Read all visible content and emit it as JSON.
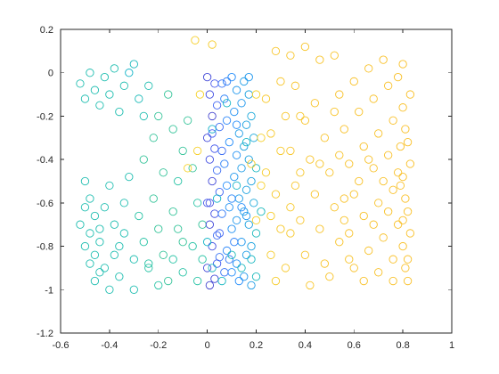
{
  "chart_data": {
    "type": "scatter",
    "title": "",
    "xlabel": "",
    "ylabel": "",
    "xlim": [
      -0.6,
      1
    ],
    "ylim": [
      -1.2,
      0.2
    ],
    "xticks": [
      -0.6,
      -0.4,
      -0.2,
      0,
      0.2,
      0.4,
      0.6,
      0.8,
      1
    ],
    "xtick_labels": [
      "-0.6",
      "-0.4",
      "-0.2",
      "0",
      "0.2",
      "0.4",
      "0.6",
      "0.8",
      "1"
    ],
    "yticks": [
      0.2,
      0,
      -0.2,
      -0.4,
      -0.6,
      -0.8,
      -1,
      -1.2
    ],
    "ytick_labels": [
      "0.2",
      "0",
      "-0.2",
      "-0.4",
      "-0.6",
      "-0.8",
      "-1",
      "-1.2"
    ],
    "grid": false,
    "legend": false,
    "box": true,
    "marker": "open-circle",
    "colormap": "parula",
    "points": [
      [
        -0.52,
        -0.05,
        0.55
      ],
      [
        -0.5,
        -0.12,
        0.55
      ],
      [
        -0.48,
        0.0,
        0.55
      ],
      [
        -0.46,
        -0.08,
        0.55
      ],
      [
        -0.44,
        -0.15,
        0.55
      ],
      [
        -0.42,
        -0.02,
        0.55
      ],
      [
        -0.4,
        -0.1,
        0.55
      ],
      [
        -0.38,
        0.02,
        0.55
      ],
      [
        -0.36,
        -0.18,
        0.55
      ],
      [
        -0.34,
        -0.06,
        0.55
      ],
      [
        -0.3,
        0.04,
        0.5
      ],
      [
        -0.28,
        -0.12,
        0.52
      ],
      [
        -0.26,
        -0.2,
        0.55
      ],
      [
        -0.32,
        0.0,
        0.45
      ],
      [
        -0.24,
        -0.06,
        0.55
      ],
      [
        -0.5,
        -0.5,
        0.55
      ],
      [
        -0.48,
        -0.58,
        0.55
      ],
      [
        -0.46,
        -0.66,
        0.55
      ],
      [
        -0.44,
        -0.72,
        0.55
      ],
      [
        -0.42,
        -0.62,
        0.55
      ],
      [
        -0.4,
        -0.52,
        0.55
      ],
      [
        -0.38,
        -0.7,
        0.55
      ],
      [
        -0.36,
        -0.8,
        0.55
      ],
      [
        -0.34,
        -0.6,
        0.55
      ],
      [
        -0.32,
        -0.48,
        0.55
      ],
      [
        -0.5,
        -0.8,
        0.55
      ],
      [
        -0.48,
        -0.88,
        0.55
      ],
      [
        -0.46,
        -0.96,
        0.55
      ],
      [
        -0.44,
        -0.78,
        0.55
      ],
      [
        -0.42,
        -0.9,
        0.55
      ],
      [
        -0.4,
        -1.0,
        0.55
      ],
      [
        -0.38,
        -0.84,
        0.55
      ],
      [
        -0.36,
        -0.94,
        0.55
      ],
      [
        -0.34,
        -0.74,
        0.55
      ],
      [
        -0.3,
        -0.86,
        0.55
      ],
      [
        -0.52,
        -0.7,
        0.55
      ],
      [
        -0.5,
        -0.62,
        0.55
      ],
      [
        -0.48,
        -0.74,
        0.55
      ],
      [
        -0.46,
        -0.84,
        0.55
      ],
      [
        -0.44,
        -0.92,
        0.55
      ],
      [
        -0.28,
        -0.66,
        0.6
      ],
      [
        -0.26,
        -0.78,
        0.6
      ],
      [
        -0.24,
        -0.9,
        0.6
      ],
      [
        -0.22,
        -0.58,
        0.62
      ],
      [
        -0.2,
        -0.72,
        0.62
      ],
      [
        -0.18,
        -0.84,
        0.62
      ],
      [
        -0.16,
        -0.96,
        0.62
      ],
      [
        -0.14,
        -0.64,
        0.62
      ],
      [
        -0.12,
        -0.5,
        0.6
      ],
      [
        -0.1,
        -0.78,
        0.62
      ],
      [
        -0.26,
        -0.4,
        0.62
      ],
      [
        -0.22,
        -0.3,
        0.62
      ],
      [
        -0.18,
        -0.46,
        0.62
      ],
      [
        -0.14,
        -0.26,
        0.62
      ],
      [
        -0.1,
        -0.36,
        0.62
      ],
      [
        -0.2,
        -0.2,
        0.62
      ],
      [
        -0.16,
        -0.1,
        0.62
      ],
      [
        -0.08,
        -0.22,
        0.62
      ],
      [
        -0.06,
        -0.44,
        0.62
      ],
      [
        -0.04,
        -0.6,
        0.6
      ],
      [
        -0.24,
        -0.88,
        0.6
      ],
      [
        -0.2,
        -0.98,
        0.6
      ],
      [
        -0.14,
        -0.86,
        0.6
      ],
      [
        -0.1,
        -0.92,
        0.6
      ],
      [
        -0.06,
        -0.8,
        0.6
      ],
      [
        -0.04,
        -0.96,
        0.6
      ],
      [
        -0.02,
        -0.7,
        0.62
      ],
      [
        -0.02,
        -0.86,
        0.6
      ],
      [
        -0.12,
        -0.72,
        0.62
      ],
      [
        -0.3,
        -1.0,
        0.55
      ],
      [
        -0.05,
        0.15,
        0.9
      ],
      [
        0.02,
        0.13,
        0.92
      ],
      [
        -0.03,
        -0.1,
        0.88
      ],
      [
        -0.08,
        -0.44,
        0.88
      ],
      [
        -0.04,
        -0.36,
        0.9
      ],
      [
        0.0,
        -0.02,
        0.1
      ],
      [
        0.01,
        -0.1,
        0.12
      ],
      [
        0.02,
        -0.2,
        0.08
      ],
      [
        0.0,
        -0.3,
        0.1
      ],
      [
        0.01,
        -0.4,
        0.12
      ],
      [
        0.02,
        -0.5,
        0.1
      ],
      [
        0.0,
        -0.6,
        0.14
      ],
      [
        0.01,
        -0.7,
        0.1
      ],
      [
        0.02,
        -0.8,
        0.12
      ],
      [
        0.0,
        -0.9,
        0.1
      ],
      [
        0.01,
        -0.98,
        0.08
      ],
      [
        0.03,
        -0.05,
        0.14
      ],
      [
        0.03,
        -0.35,
        0.14
      ],
      [
        0.03,
        -0.65,
        0.12
      ],
      [
        0.03,
        -0.95,
        0.1
      ],
      [
        0.04,
        -0.15,
        0.18
      ],
      [
        0.05,
        -0.25,
        0.2
      ],
      [
        0.04,
        -0.45,
        0.2
      ],
      [
        0.05,
        -0.55,
        0.18
      ],
      [
        0.04,
        -0.75,
        0.2
      ],
      [
        0.05,
        -0.85,
        0.22
      ],
      [
        0.06,
        -0.05,
        0.22
      ],
      [
        0.06,
        -0.65,
        0.24
      ],
      [
        0.07,
        -0.12,
        0.26
      ],
      [
        0.07,
        -0.42,
        0.26
      ],
      [
        0.08,
        -0.22,
        0.28
      ],
      [
        0.08,
        -0.52,
        0.3
      ],
      [
        0.08,
        -0.82,
        0.28
      ],
      [
        0.09,
        -0.32,
        0.3
      ],
      [
        0.09,
        -0.62,
        0.32
      ],
      [
        0.1,
        -0.02,
        0.3
      ],
      [
        0.1,
        -0.72,
        0.32
      ],
      [
        0.1,
        -0.92,
        0.3
      ],
      [
        0.11,
        -0.18,
        0.32
      ],
      [
        0.11,
        -0.48,
        0.34
      ],
      [
        0.12,
        -0.08,
        0.34
      ],
      [
        0.12,
        -0.38,
        0.32
      ],
      [
        0.12,
        -0.68,
        0.34
      ],
      [
        0.12,
        -0.88,
        0.32
      ],
      [
        0.13,
        -0.28,
        0.36
      ],
      [
        0.13,
        -0.58,
        0.36
      ],
      [
        0.14,
        -0.14,
        0.34
      ],
      [
        0.14,
        -0.44,
        0.36
      ],
      [
        0.14,
        -0.78,
        0.34
      ],
      [
        0.15,
        -0.04,
        0.36
      ],
      [
        0.15,
        -0.34,
        0.38
      ],
      [
        0.15,
        -0.64,
        0.36
      ],
      [
        0.15,
        -0.94,
        0.34
      ],
      [
        0.16,
        -0.24,
        0.38
      ],
      [
        0.16,
        -0.54,
        0.38
      ],
      [
        0.16,
        -0.84,
        0.36
      ],
      [
        0.17,
        -0.1,
        0.38
      ],
      [
        0.17,
        -0.4,
        0.38
      ],
      [
        0.17,
        -0.7,
        0.38
      ],
      [
        0.18,
        -0.2,
        0.4
      ],
      [
        0.18,
        -0.5,
        0.38
      ],
      [
        0.18,
        -0.8,
        0.38
      ],
      [
        0.18,
        -0.98,
        0.36
      ],
      [
        0.19,
        -0.3,
        0.4
      ],
      [
        0.19,
        -0.6,
        0.4
      ],
      [
        0.02,
        -0.28,
        0.16
      ],
      [
        0.06,
        -0.36,
        0.2
      ],
      [
        0.1,
        -0.58,
        0.28
      ],
      [
        0.14,
        -0.62,
        0.3
      ],
      [
        0.17,
        -0.02,
        0.34
      ],
      [
        0.05,
        -0.74,
        0.18
      ],
      [
        0.09,
        -0.86,
        0.24
      ],
      [
        0.13,
        -0.96,
        0.3
      ],
      [
        0.07,
        -0.92,
        0.22
      ],
      [
        0.11,
        -0.78,
        0.26
      ],
      [
        0.01,
        -0.6,
        0.12
      ],
      [
        0.04,
        -0.88,
        0.16
      ],
      [
        0.16,
        -0.66,
        0.34
      ],
      [
        0.12,
        -0.24,
        0.3
      ],
      [
        0.08,
        -0.04,
        0.26
      ],
      [
        0.0,
        -0.78,
        0.46
      ],
      [
        0.02,
        -0.9,
        0.5
      ],
      [
        0.06,
        -0.96,
        0.48
      ],
      [
        0.1,
        -0.84,
        0.52
      ],
      [
        0.14,
        -0.9,
        0.5
      ],
      [
        0.18,
        -0.86,
        0.48
      ],
      [
        0.2,
        -0.94,
        0.5
      ],
      [
        0.04,
        -0.58,
        0.46
      ],
      [
        0.12,
        -0.52,
        0.46
      ],
      [
        0.2,
        -0.74,
        0.5
      ],
      [
        0.02,
        -0.26,
        0.44
      ],
      [
        0.08,
        -0.14,
        0.46
      ],
      [
        0.16,
        -0.32,
        0.46
      ],
      [
        0.2,
        -0.44,
        0.48
      ],
      [
        0.22,
        -0.64,
        0.5
      ],
      [
        0.2,
        -0.1,
        0.88
      ],
      [
        0.22,
        -0.3,
        0.9
      ],
      [
        0.18,
        -0.42,
        0.92
      ],
      [
        0.22,
        -0.52,
        0.9
      ],
      [
        0.2,
        -0.68,
        0.9
      ],
      [
        0.24,
        -0.12,
        0.94
      ],
      [
        0.26,
        -0.28,
        0.94
      ],
      [
        0.28,
        -0.56,
        0.94
      ],
      [
        0.3,
        -0.72,
        0.94
      ],
      [
        0.26,
        -0.84,
        0.92
      ],
      [
        0.28,
        0.1,
        0.96
      ],
      [
        0.34,
        0.08,
        0.96
      ],
      [
        0.4,
        0.12,
        0.96
      ],
      [
        0.46,
        0.06,
        0.97
      ],
      [
        0.52,
        0.08,
        0.97
      ],
      [
        0.3,
        -0.04,
        0.96
      ],
      [
        0.32,
        -0.2,
        0.96
      ],
      [
        0.34,
        -0.36,
        0.96
      ],
      [
        0.36,
        -0.52,
        0.96
      ],
      [
        0.38,
        -0.68,
        0.96
      ],
      [
        0.4,
        -0.84,
        0.96
      ],
      [
        0.42,
        -0.98,
        0.96
      ],
      [
        0.36,
        -0.06,
        0.97
      ],
      [
        0.4,
        -0.22,
        0.97
      ],
      [
        0.42,
        -0.4,
        0.97
      ],
      [
        0.44,
        -0.56,
        0.97
      ],
      [
        0.46,
        -0.72,
        0.97
      ],
      [
        0.48,
        -0.88,
        0.97
      ],
      [
        0.44,
        -0.14,
        0.97
      ],
      [
        0.48,
        -0.3,
        0.97
      ],
      [
        0.5,
        -0.46,
        0.97
      ],
      [
        0.52,
        -0.62,
        0.97
      ],
      [
        0.54,
        -0.78,
        0.97
      ],
      [
        0.5,
        -0.94,
        0.97
      ],
      [
        0.54,
        -0.1,
        0.98
      ],
      [
        0.56,
        -0.26,
        0.98
      ],
      [
        0.58,
        -0.42,
        0.98
      ],
      [
        0.56,
        -0.58,
        0.98
      ],
      [
        0.58,
        -0.74,
        0.98
      ],
      [
        0.6,
        -0.9,
        0.98
      ],
      [
        0.6,
        -0.04,
        0.98
      ],
      [
        0.62,
        -0.18,
        0.98
      ],
      [
        0.64,
        -0.34,
        0.98
      ],
      [
        0.62,
        -0.5,
        0.98
      ],
      [
        0.64,
        -0.66,
        0.98
      ],
      [
        0.66,
        -0.82,
        0.98
      ],
      [
        0.64,
        -0.96,
        0.98
      ],
      [
        0.66,
        0.02,
        0.98
      ],
      [
        0.68,
        -0.12,
        0.98
      ],
      [
        0.7,
        -0.28,
        0.98
      ],
      [
        0.68,
        -0.44,
        0.98
      ],
      [
        0.7,
        -0.6,
        0.98
      ],
      [
        0.72,
        -0.76,
        0.98
      ],
      [
        0.7,
        -0.92,
        0.98
      ],
      [
        0.72,
        0.06,
        0.99
      ],
      [
        0.74,
        -0.06,
        0.99
      ],
      [
        0.76,
        -0.22,
        0.99
      ],
      [
        0.74,
        -0.38,
        0.99
      ],
      [
        0.76,
        -0.54,
        0.99
      ],
      [
        0.78,
        -0.7,
        0.99
      ],
      [
        0.76,
        -0.86,
        0.99
      ],
      [
        0.78,
        -0.02,
        0.99
      ],
      [
        0.8,
        -0.16,
        0.99
      ],
      [
        0.82,
        -0.32,
        0.99
      ],
      [
        0.8,
        -0.48,
        0.99
      ],
      [
        0.82,
        -0.64,
        0.99
      ],
      [
        0.8,
        -0.8,
        0.99
      ],
      [
        0.82,
        -0.96,
        0.99
      ],
      [
        0.83,
        -0.1,
        0.99
      ],
      [
        0.81,
        -0.26,
        0.99
      ],
      [
        0.83,
        -0.42,
        0.99
      ],
      [
        0.81,
        -0.58,
        0.99
      ],
      [
        0.83,
        -0.74,
        0.99
      ],
      [
        0.81,
        -0.9,
        0.99
      ],
      [
        0.79,
        -0.34,
        0.99
      ],
      [
        0.78,
        -0.46,
        0.99
      ],
      [
        0.79,
        -0.52,
        0.99
      ],
      [
        0.8,
        -0.68,
        0.99
      ],
      [
        0.82,
        -0.86,
        0.99
      ],
      [
        0.8,
        0.04,
        0.99
      ],
      [
        0.24,
        -0.46,
        0.92
      ],
      [
        0.26,
        -0.66,
        0.92
      ],
      [
        0.28,
        -0.96,
        0.92
      ],
      [
        0.32,
        -0.9,
        0.94
      ],
      [
        0.34,
        -0.74,
        0.94
      ],
      [
        0.3,
        -0.36,
        0.94
      ],
      [
        0.34,
        -0.62,
        0.94
      ],
      [
        0.38,
        -0.46,
        0.95
      ],
      [
        0.38,
        -0.2,
        0.95
      ],
      [
        0.46,
        -0.42,
        0.96
      ],
      [
        0.52,
        -0.18,
        0.97
      ],
      [
        0.54,
        -0.38,
        0.97
      ],
      [
        0.56,
        -0.68,
        0.97
      ],
      [
        0.58,
        -0.86,
        0.97
      ],
      [
        0.6,
        -0.56,
        0.97
      ],
      [
        0.66,
        -0.4,
        0.98
      ],
      [
        0.68,
        -0.7,
        0.98
      ],
      [
        0.72,
        -0.5,
        0.98
      ],
      [
        0.74,
        -0.64,
        0.98
      ],
      [
        0.76,
        -0.96,
        0.98
      ]
    ]
  }
}
